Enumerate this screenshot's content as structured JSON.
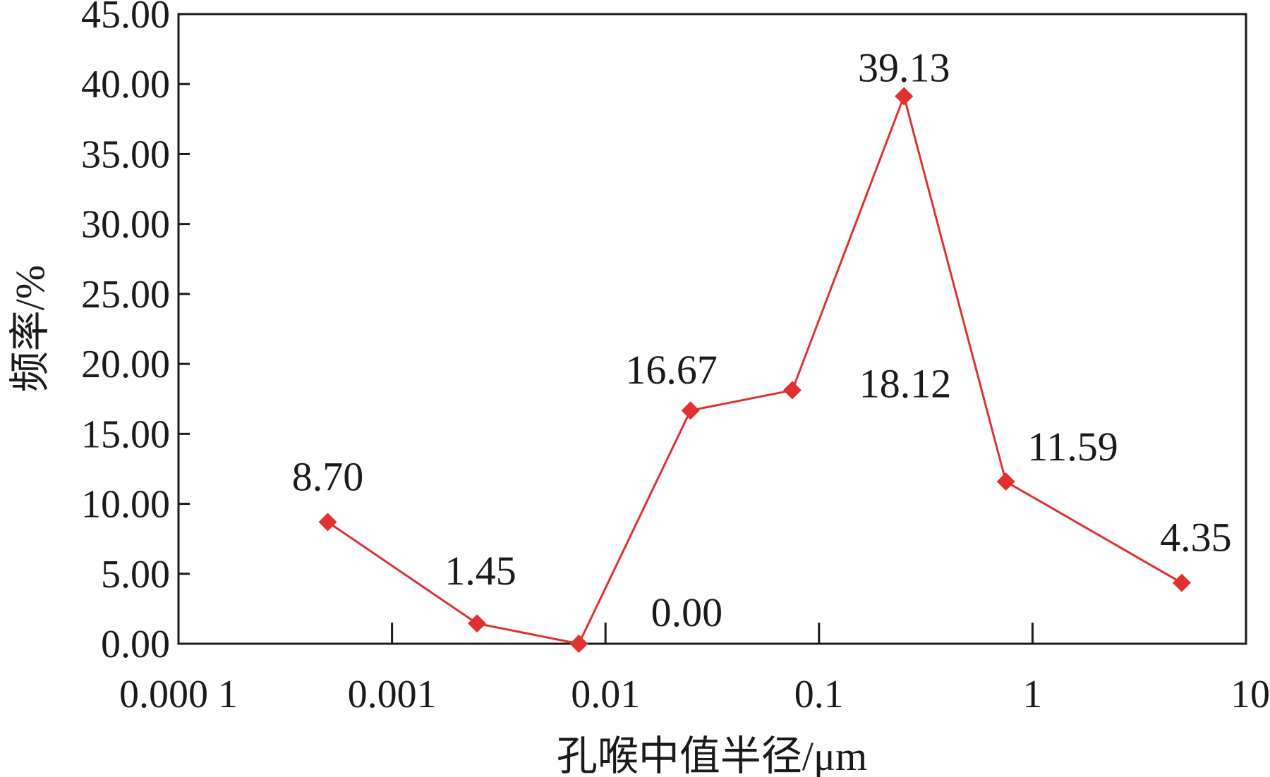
{
  "chart_data": {
    "type": "line",
    "title": "",
    "xlabel": "孔喉中值半径/μm",
    "ylabel": "频率/%",
    "x_scale": "log",
    "xlim": [
      0.0001,
      10
    ],
    "ylim": [
      0,
      45
    ],
    "x_ticks": [
      {
        "value": 0.0001,
        "label": "0.000 1"
      },
      {
        "value": 0.001,
        "label": "0.001"
      },
      {
        "value": 0.01,
        "label": "0.01"
      },
      {
        "value": 0.1,
        "label": "0.1"
      },
      {
        "value": 1,
        "label": "1"
      },
      {
        "value": 10,
        "label": "10"
      }
    ],
    "y_ticks": [
      {
        "value": 0,
        "label": "0.00"
      },
      {
        "value": 5,
        "label": "5.00"
      },
      {
        "value": 10,
        "label": "10.00"
      },
      {
        "value": 15,
        "label": "15.00"
      },
      {
        "value": 20,
        "label": "20.00"
      },
      {
        "value": 25,
        "label": "25.00"
      },
      {
        "value": 30,
        "label": "30.00"
      },
      {
        "value": 35,
        "label": "35.00"
      },
      {
        "value": 40,
        "label": "40.00"
      },
      {
        "value": 45,
        "label": "45.00"
      }
    ],
    "grid": false,
    "legend": "none",
    "color": "#e03030",
    "marker": "diamond",
    "series": [
      {
        "points": [
          {
            "x": 0.0005,
            "y": 8.7,
            "label": "8.70"
          },
          {
            "x": 0.0025,
            "y": 1.45,
            "label": "1.45"
          },
          {
            "x": 0.0075,
            "y": 0.0,
            "label": "0.00"
          },
          {
            "x": 0.025,
            "y": 16.67,
            "label": "16.67"
          },
          {
            "x": 0.075,
            "y": 18.12,
            "label": "18.12"
          },
          {
            "x": 0.25,
            "y": 39.13,
            "label": "39.13"
          },
          {
            "x": 0.75,
            "y": 11.59,
            "label": "11.59"
          },
          {
            "x": 5,
            "y": 4.35,
            "label": "4.35"
          }
        ]
      }
    ]
  }
}
